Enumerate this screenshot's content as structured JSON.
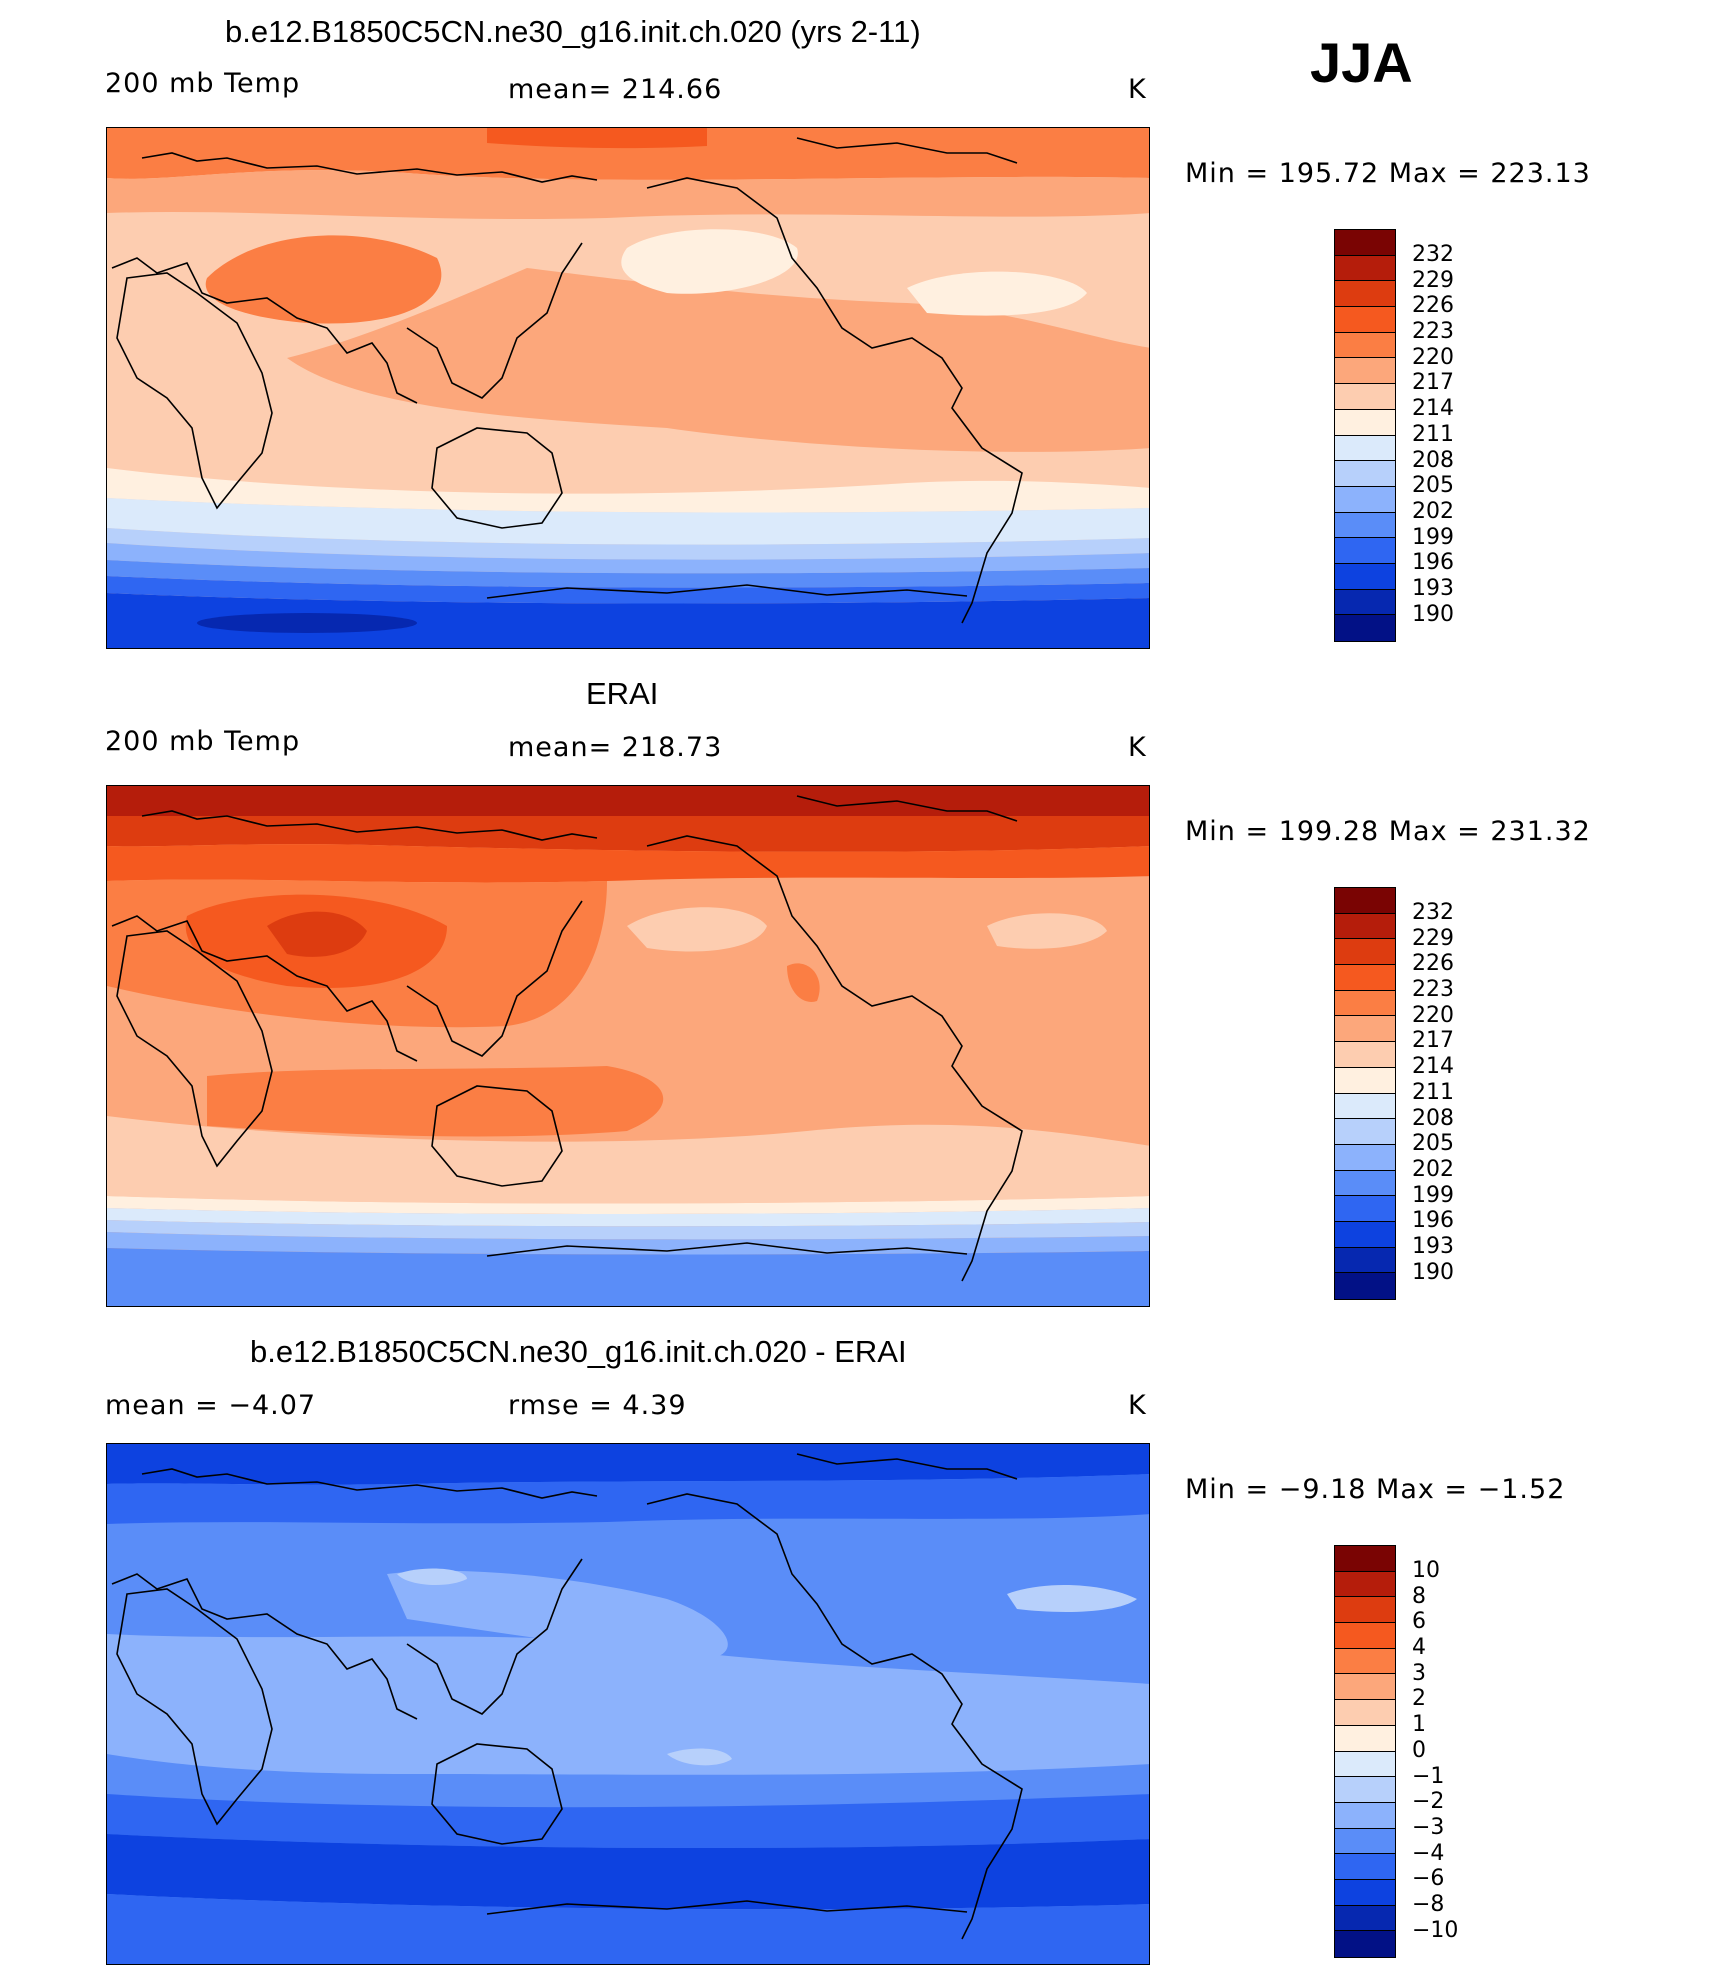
{
  "season": "JJA",
  "panels": [
    {
      "title": "b.e12.B1850C5CN.ne30_g16.init.ch.020 (yrs 2-11)",
      "left_label": "200 mb Temp",
      "center_label": "mean=  214.66",
      "units": "K",
      "minmax": "Min  =  195.72  Max  =  223.13",
      "colorbar_ticks": [
        "232",
        "229",
        "226",
        "223",
        "220",
        "217",
        "214",
        "211",
        "208",
        "205",
        "202",
        "199",
        "196",
        "193",
        "190"
      ]
    },
    {
      "title": "ERAI",
      "left_label": "200 mb Temp",
      "center_label": "mean=  218.73",
      "units": "K",
      "minmax": "Min  =  199.28  Max  =  231.32",
      "colorbar_ticks": [
        "232",
        "229",
        "226",
        "223",
        "220",
        "217",
        "214",
        "211",
        "208",
        "205",
        "202",
        "199",
        "196",
        "193",
        "190"
      ]
    },
    {
      "title": "b.e12.B1850C5CN.ne30_g16.init.ch.020 - ERAI",
      "left_label": "mean  =    −4.07",
      "center_label": "rmse  =     4.39",
      "units": "K",
      "minmax": "Min  =    −9.18  Max  =    −1.52",
      "colorbar_ticks": [
        "10",
        "8",
        "6",
        "4",
        "3",
        "2",
        "1",
        "0",
        "−1",
        "−2",
        "−3",
        "−4",
        "−6",
        "−8",
        "−10"
      ]
    }
  ],
  "colors": {
    "scale": [
      "#7a0403",
      "#b51d0b",
      "#dd3c10",
      "#f5591f",
      "#fb7e44",
      "#fca77b",
      "#fdcdb0",
      "#fff0e0",
      "#dbeafb",
      "#b7d0fb",
      "#8cb2fc",
      "#5a8df8",
      "#2f66f2",
      "#0d42e0",
      "#0628b0",
      "#021186"
    ]
  }
}
